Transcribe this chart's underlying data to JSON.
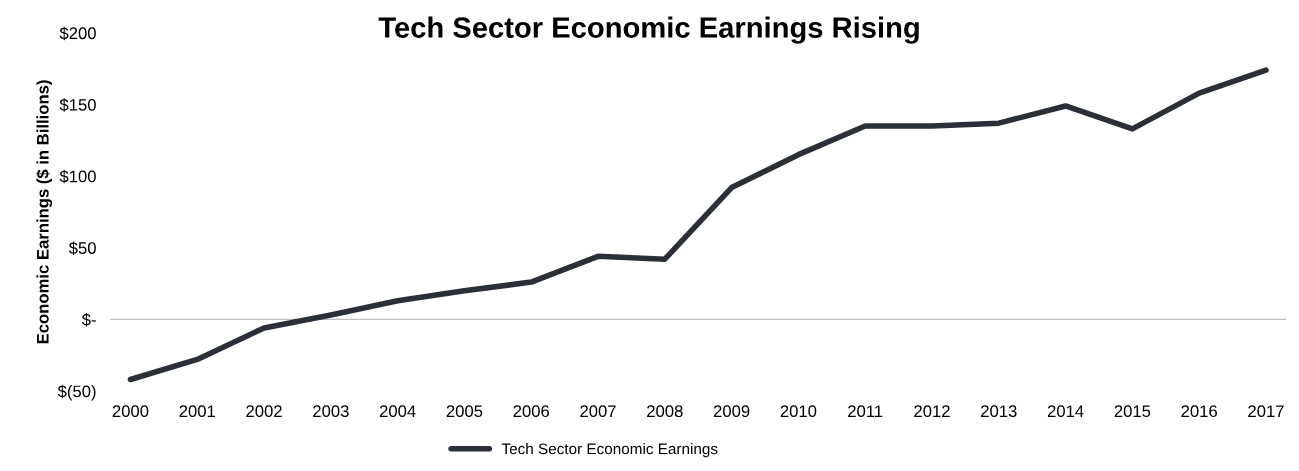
{
  "chart_data": {
    "type": "line",
    "title": "Tech Sector Economic Earnings Rising",
    "ylabel": "Economic Earnings ($ in Billions)",
    "categories": [
      "2000",
      "2001",
      "2002",
      "2003",
      "2004",
      "2005",
      "2006",
      "2007",
      "2008",
      "2009",
      "2010",
      "2011",
      "2012",
      "2013",
      "2014",
      "2015",
      "2016",
      "2017"
    ],
    "series": [
      {
        "name": "Tech Sector Economic Earnings",
        "color": "#2b2f38",
        "values": [
          -42,
          -28,
          -6,
          3,
          13,
          20,
          26,
          44,
          42,
          92,
          115,
          135,
          135,
          137,
          149,
          133,
          158,
          174
        ]
      }
    ],
    "ylim": [
      -50,
      200
    ],
    "yticks": [
      {
        "value": -50,
        "label": "$(50)"
      },
      {
        "value": 0,
        "label": "$-"
      },
      {
        "value": 50,
        "label": "$50"
      },
      {
        "value": 100,
        "label": "$100"
      },
      {
        "value": 150,
        "label": "$150"
      },
      {
        "value": 200,
        "label": "$200"
      }
    ],
    "ref_lines": [
      {
        "axis": "y",
        "value": 0,
        "color": "#bfbfbf"
      }
    ],
    "grid": false,
    "legend": "bottom",
    "marker": "none",
    "line_style": "solid"
  }
}
